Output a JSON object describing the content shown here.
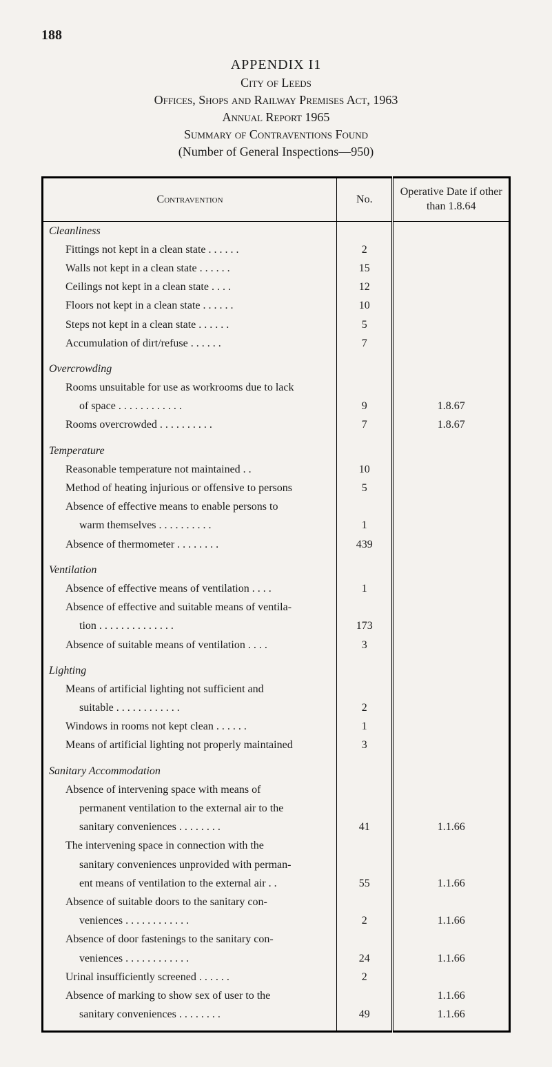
{
  "pageNumber": "188",
  "headings": {
    "appendix": "APPENDIX I1",
    "city": "City of Leeds",
    "offices": "Offices, Shops and Railway Premises Act, 1963",
    "report": "Annual Report 1965",
    "summary": "Summary of Contraventions Found",
    "flourish": "\\",
    "numberLine": "(Number of General Inspections—950)"
  },
  "tableHeaders": {
    "contravention": "Contravention",
    "no": "No.",
    "operative": "Operative Date if other than 1.8.64"
  },
  "sections": [
    {
      "title": "Cleanliness",
      "rows": [
        {
          "desc": "Fittings not kept in a clean state . .    . .    . .",
          "no": "2",
          "date": ""
        },
        {
          "desc": "Walls not kept in a clean state  . .    . .    . .",
          "no": "15",
          "date": ""
        },
        {
          "desc": "Ceilings not kept in a clean state        . .    . .",
          "no": "12",
          "date": ""
        },
        {
          "desc": "Floors not kept in a clean state . .    . .    . .",
          "no": "10",
          "date": ""
        },
        {
          "desc": "Steps not kept in a clean state  . .    . .    . .",
          "no": "5",
          "date": ""
        },
        {
          "desc": "Accumulation of dirt/refuse        . .    . .    . .",
          "no": "7",
          "date": ""
        }
      ]
    },
    {
      "title": "Overcrowding",
      "rows": [
        {
          "desc": "Rooms unsuitable for use as workrooms due to lack",
          "no": "",
          "date": ""
        },
        {
          "desc2": "of space     . .    . .    . .    . .    . .    . .",
          "no": "9",
          "date": "1.8.67"
        },
        {
          "desc": "Rooms overcrowded . .    . .    . .    . .    . .",
          "no": "7",
          "date": "1.8.67"
        }
      ]
    },
    {
      "title": "Temperature",
      "rows": [
        {
          "desc": "Reasonable temperature not maintained        . .",
          "no": "10",
          "date": ""
        },
        {
          "desc": "Method of heating injurious or offensive to persons",
          "no": "5",
          "date": ""
        },
        {
          "desc": "Absence of effective means to enable persons to",
          "no": "",
          "date": ""
        },
        {
          "desc2": "warm themselves  . .    . .    . .    . .    . .",
          "no": "1",
          "date": ""
        },
        {
          "desc": "Absence of thermometer    . .    . .    . .    . .",
          "no": "439",
          "date": ""
        }
      ]
    },
    {
      "title": "Ventilation",
      "rows": [
        {
          "desc": "Absence of effective means of ventilation . .    . .",
          "no": "1",
          "date": ""
        },
        {
          "desc": "Absence of effective and suitable means of ventila-",
          "no": "",
          "date": ""
        },
        {
          "desc2": "tion . .    . .    . .    . .    . .    . .    . .",
          "no": "173",
          "date": ""
        },
        {
          "desc": "Absence of suitable means of ventilation  . .    . .",
          "no": "3",
          "date": ""
        }
      ]
    },
    {
      "title": "Lighting",
      "rows": [
        {
          "desc": "Means of artificial lighting not sufficient and",
          "no": "",
          "date": ""
        },
        {
          "desc2": "suitable    . .    . .    . .    . .    . .    . .",
          "no": "2",
          "date": ""
        },
        {
          "desc": "Windows in rooms not kept clean . .    . .    . .",
          "no": "1",
          "date": ""
        },
        {
          "desc": "Means of artificial lighting not properly maintained",
          "no": "3",
          "date": ""
        }
      ]
    },
    {
      "title": "Sanitary Accommodation",
      "rows": [
        {
          "desc": "Absence of intervening space with means of",
          "no": "",
          "date": ""
        },
        {
          "desc2": "permanent ventilation to the external air to the",
          "no": "",
          "date": ""
        },
        {
          "desc2": "sanitary conveniences    . .    . .    . .    . .",
          "no": "41",
          "date": "1.1.66"
        },
        {
          "desc": "The intervening space in connection with the",
          "no": "",
          "date": ""
        },
        {
          "desc2": "sanitary conveniences unprovided with perman-",
          "no": "",
          "date": ""
        },
        {
          "desc2": "ent means of ventilation to the external air    . .",
          "no": "55",
          "date": "1.1.66"
        },
        {
          "desc": "Absence of suitable doors to the sanitary con-",
          "no": "",
          "date": ""
        },
        {
          "desc2": "veniences   . .    . .    . .    . .    . .    . .",
          "no": "2",
          "date": "1.1.66"
        },
        {
          "desc": "Absence of door fastenings to the sanitary con-",
          "no": "",
          "date": ""
        },
        {
          "desc2": "veniences   . .    . .    . .    . .    . .    . .",
          "no": "24",
          "date": "1.1.66"
        },
        {
          "desc": "Urinal insufficiently screened        . .    . .    . .",
          "no": "2",
          "date": ""
        },
        {
          "desc": "Absence of marking to show sex of user to the",
          "no": "",
          "date": "1.1.66"
        },
        {
          "desc2": "sanitary conveniences    . .    . .    . .    . .",
          "no": "49",
          "date": "1.1.66"
        }
      ]
    }
  ]
}
